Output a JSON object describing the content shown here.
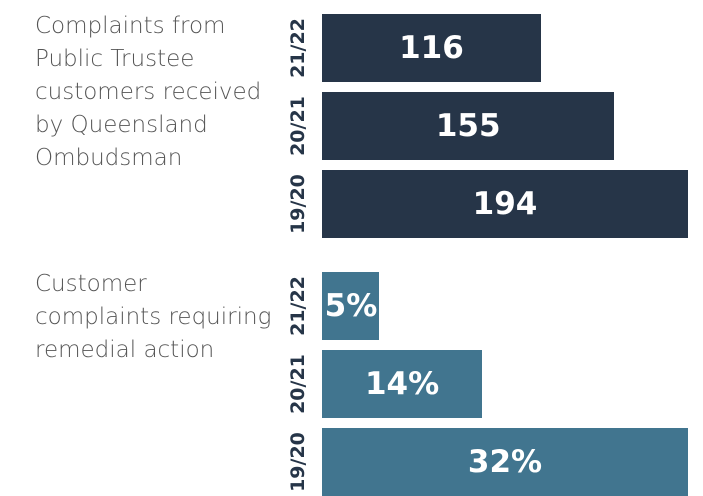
{
  "chart_data": [
    {
      "type": "bar",
      "title": "Complaints from Public Trustee customers received by Queensland Ombudsman",
      "categories": [
        "21/22",
        "20/21",
        "19/20"
      ],
      "values": [
        116,
        155,
        194
      ],
      "color": "#263548"
    },
    {
      "type": "bar",
      "title": "Customer complaints requiring remedial action",
      "categories": [
        "21/22",
        "20/21",
        "19/20"
      ],
      "values": [
        5,
        14,
        32
      ],
      "value_labels": [
        "5%",
        "14%",
        "32%"
      ],
      "color": "#41758f"
    }
  ]
}
